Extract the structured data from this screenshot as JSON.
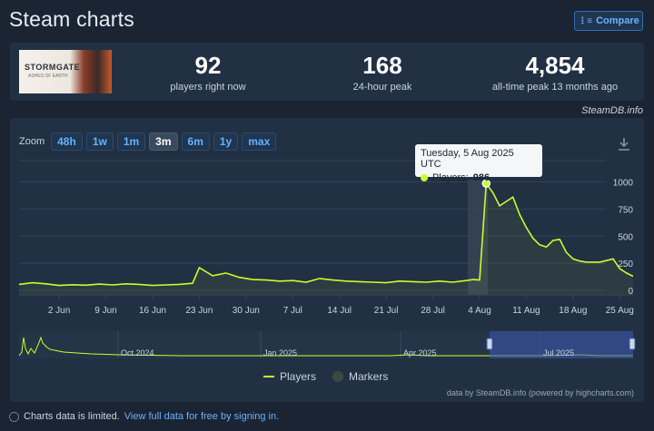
{
  "page": {
    "title": "Steam charts",
    "compare_label": "Compare"
  },
  "game": {
    "logo_text": "STORMGATE",
    "logo_subtext": "ASHES OF EARTH"
  },
  "stats": {
    "players_now": "92",
    "players_now_label": "players right now",
    "peak_24h": "168",
    "peak_24h_label": "24-hour peak",
    "all_time_peak": "4,854",
    "all_time_label": "all-time peak 13 months ago"
  },
  "steamdb_link": "SteamDB.info",
  "zoom": {
    "label": "Zoom",
    "options": [
      "48h",
      "1w",
      "1m",
      "3m",
      "6m",
      "1y",
      "max"
    ],
    "active": "3m"
  },
  "tooltip": {
    "date": "Tuesday, 5 Aug 2025 UTC",
    "series_label": "Players:",
    "value": "986"
  },
  "legend": {
    "players": "Players",
    "markers": "Markers"
  },
  "credit": "data by SteamDB.info (powered by highcharts.com)",
  "footer": {
    "text": "Charts data is limited.",
    "link": "View full data for free by signing in."
  },
  "colors": {
    "line": "#c5ff2b",
    "background": "#1b2433",
    "card": "#223043",
    "accent": "#66b3ff"
  },
  "chart_data": {
    "type": "line",
    "series": [
      {
        "name": "Players",
        "x": [
          "2025-05-27",
          "2025-05-29",
          "2025-05-31",
          "2025-06-02",
          "2025-06-04",
          "2025-06-06",
          "2025-06-08",
          "2025-06-10",
          "2025-06-12",
          "2025-06-14",
          "2025-06-16",
          "2025-06-18",
          "2025-06-20",
          "2025-06-22",
          "2025-06-23",
          "2025-06-25",
          "2025-06-27",
          "2025-06-29",
          "2025-07-01",
          "2025-07-03",
          "2025-07-05",
          "2025-07-07",
          "2025-07-09",
          "2025-07-11",
          "2025-07-13",
          "2025-07-15",
          "2025-07-17",
          "2025-07-19",
          "2025-07-21",
          "2025-07-23",
          "2025-07-25",
          "2025-07-27",
          "2025-07-29",
          "2025-07-31",
          "2025-08-02",
          "2025-08-03",
          "2025-08-04",
          "2025-08-05",
          "2025-08-06",
          "2025-08-07",
          "2025-08-08",
          "2025-08-09",
          "2025-08-10",
          "2025-08-11",
          "2025-08-12",
          "2025-08-13",
          "2025-08-14",
          "2025-08-15",
          "2025-08-16",
          "2025-08-17",
          "2025-08-18",
          "2025-08-19",
          "2025-08-20",
          "2025-08-22",
          "2025-08-24",
          "2025-08-25",
          "2025-08-26",
          "2025-08-27"
        ],
        "values": [
          55,
          70,
          60,
          45,
          52,
          48,
          58,
          50,
          60,
          55,
          45,
          50,
          55,
          65,
          210,
          135,
          160,
          120,
          100,
          95,
          85,
          90,
          75,
          110,
          95,
          85,
          80,
          75,
          70,
          85,
          80,
          75,
          85,
          75,
          90,
          100,
          95,
          986,
          900,
          780,
          820,
          860,
          700,
          580,
          480,
          420,
          400,
          460,
          470,
          350,
          290,
          270,
          260,
          260,
          290,
          200,
          160,
          130
        ]
      }
    ],
    "x_ticks": [
      "2 Jun",
      "9 Jun",
      "16 Jun",
      "23 Jun",
      "30 Jun",
      "7 Jul",
      "14 Jul",
      "21 Jul",
      "28 Jul",
      "4 Aug",
      "11 Aug",
      "18 Aug",
      "25 Aug"
    ],
    "y_ticks": [
      0,
      250,
      500,
      750,
      1000
    ],
    "ylim": [
      0,
      1050
    ],
    "navigator_labels": [
      "Oct 2024",
      "Jan 2025",
      "Apr 2025",
      "Jul 2025"
    ],
    "grid": true,
    "legend_position": "bottom-center"
  }
}
